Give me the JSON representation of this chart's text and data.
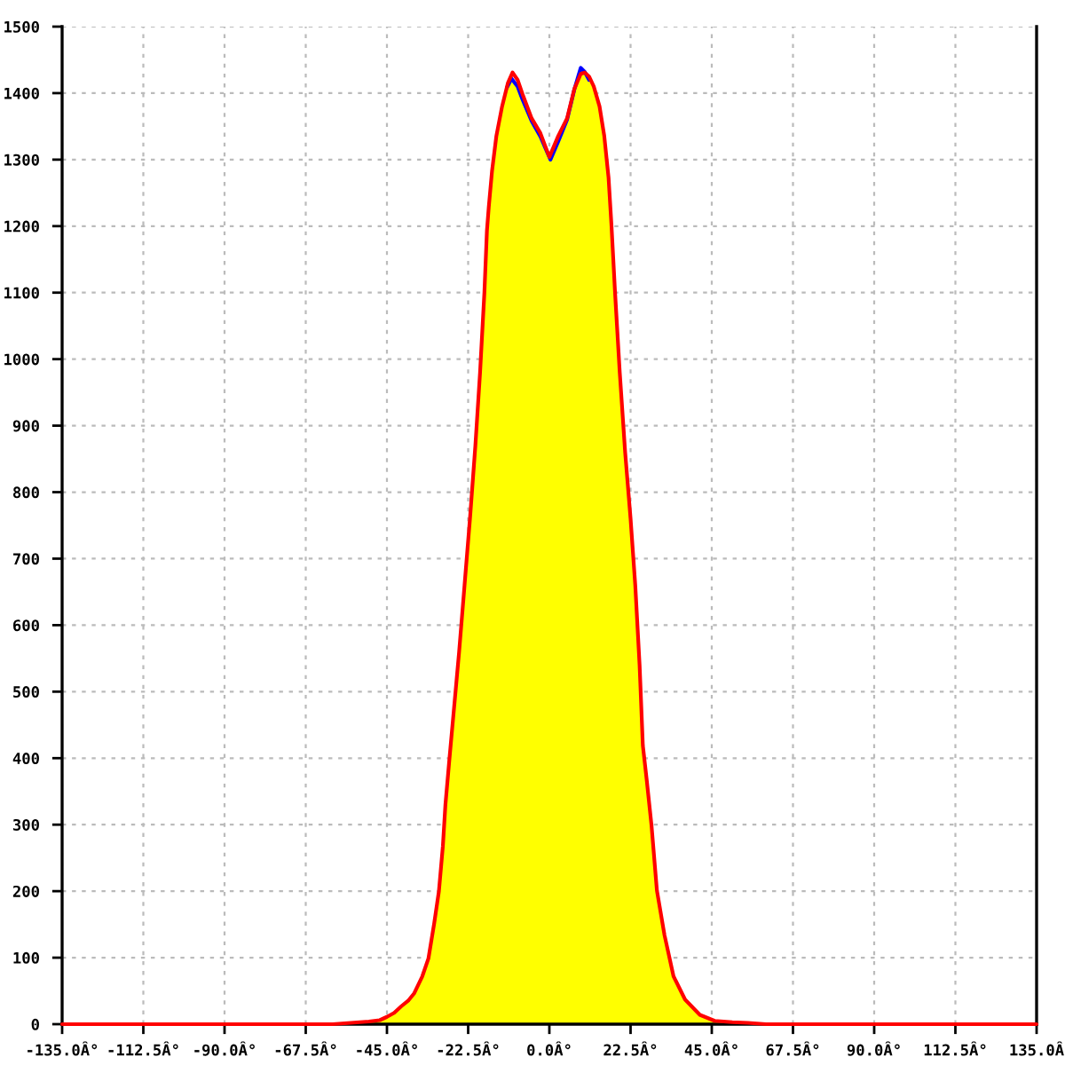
{
  "chart_data": {
    "type": "line",
    "xlim": [
      -135,
      135
    ],
    "xticks": [
      {
        "value": -135,
        "label": "-135.0Â°"
      },
      {
        "value": -112.5,
        "label": "-112.5Â°"
      },
      {
        "value": -90,
        "label": "-90.0Â°"
      },
      {
        "value": -67.5,
        "label": "-67.5Â°"
      },
      {
        "value": -45,
        "label": "-45.0Â°"
      },
      {
        "value": -22.5,
        "label": "-22.5Â°"
      },
      {
        "value": 0,
        "label": "0.0Â°"
      },
      {
        "value": 22.5,
        "label": "22.5Â°"
      },
      {
        "value": 45,
        "label": "45.0Â°"
      },
      {
        "value": 67.5,
        "label": "67.5Â°"
      },
      {
        "value": 90,
        "label": "90.0Â°"
      },
      {
        "value": 112.5,
        "label": "112.5Â°"
      },
      {
        "value": 135,
        "label": "135.0Â"
      }
    ],
    "ylim": [
      0,
      1500
    ],
    "yticks": [
      0,
      100,
      200,
      300,
      400,
      500,
      600,
      700,
      800,
      900,
      1000,
      1100,
      1200,
      1300,
      1400,
      1500
    ],
    "grid": true,
    "series": [
      {
        "type": "area",
        "color": "#ffff00",
        "x": [
          -50,
          -47,
          -45,
          -43,
          -41,
          -39,
          -37.5,
          -35.2,
          -33.5,
          -31.9,
          -30.6,
          -29.5,
          -28.8,
          -27.8,
          -26.5,
          -25,
          -23.5,
          -22,
          -20.5,
          -19.2,
          -18,
          -17.3,
          -16.8,
          -15.9,
          -14.7,
          -13.1,
          -11.8,
          -10.5,
          -8.8,
          -7.4,
          -4.9,
          -2.5,
          0.3,
          2.5,
          4.9,
          6.9,
          8.7,
          9.8,
          11,
          12.3,
          13.9,
          15.2,
          16.4,
          17.2,
          18.2,
          19.5,
          21,
          22.5,
          23.8,
          25,
          25.9,
          27,
          28.3,
          29.8,
          31.9,
          34.4,
          37.6,
          41.7,
          45.8,
          50.7
        ],
        "values": [
          4,
          6,
          11,
          17,
          27,
          36,
          46,
          72,
          99,
          152,
          200,
          268,
          330,
          392,
          470,
          560,
          660,
          760,
          870,
          980,
          1100,
          1193,
          1228,
          1282,
          1335,
          1378,
          1408,
          1422,
          1410,
          1390,
          1358,
          1335,
          1300,
          1328,
          1360,
          1405,
          1438,
          1432,
          1420,
          1405,
          1380,
          1336,
          1273,
          1202,
          1100,
          980,
          860,
          760,
          660,
          540,
          419,
          366,
          299,
          201,
          134,
          72,
          37,
          14,
          5,
          3
        ]
      },
      {
        "color": "#0000ff",
        "x": [
          -11.8,
          -10.5,
          -8.8,
          -7.4,
          -4.9,
          -2.5,
          0.3,
          2.5,
          4.9,
          6.9,
          8.7,
          9.8,
          11
        ],
        "values": [
          1408,
          1422,
          1410,
          1390,
          1358,
          1335,
          1300,
          1328,
          1360,
          1405,
          1438,
          1432,
          1420
        ]
      },
      {
        "color": "#ff0000",
        "x": [
          -135,
          -60,
          -55,
          -50,
          -47,
          -45,
          -43,
          -41,
          -39,
          -37.5,
          -35.2,
          -33.5,
          -31.9,
          -30.6,
          -29.5,
          -28.8,
          -27.8,
          -26.5,
          -25,
          -23.5,
          -22,
          -20.5,
          -19.2,
          -18,
          -17.3,
          -16.8,
          -15.9,
          -14.7,
          -13.1,
          -11.5,
          -10.2,
          -8.8,
          -7.4,
          -4.9,
          -2.5,
          0,
          2.5,
          4.9,
          6.9,
          8.7,
          9.8,
          11,
          12.3,
          13.9,
          15.2,
          16.4,
          17.2,
          18.2,
          19.5,
          21,
          22.5,
          23.8,
          25,
          25.9,
          27,
          28.3,
          29.8,
          31.9,
          34.4,
          37.6,
          41.7,
          45.8,
          50.7,
          55,
          60,
          135
        ],
        "values": [
          0,
          0,
          2,
          4,
          6,
          11,
          17,
          27,
          36,
          46,
          72,
          99,
          152,
          200,
          268,
          330,
          392,
          470,
          560,
          660,
          760,
          870,
          980,
          1100,
          1193,
          1228,
          1282,
          1335,
          1380,
          1415,
          1431,
          1420,
          1398,
          1362,
          1340,
          1304,
          1336,
          1362,
          1406,
          1429,
          1431,
          1425,
          1410,
          1380,
          1336,
          1273,
          1202,
          1100,
          980,
          860,
          760,
          660,
          540,
          419,
          366,
          299,
          201,
          134,
          72,
          37,
          14,
          5,
          3,
          2,
          0,
          0
        ]
      }
    ]
  }
}
